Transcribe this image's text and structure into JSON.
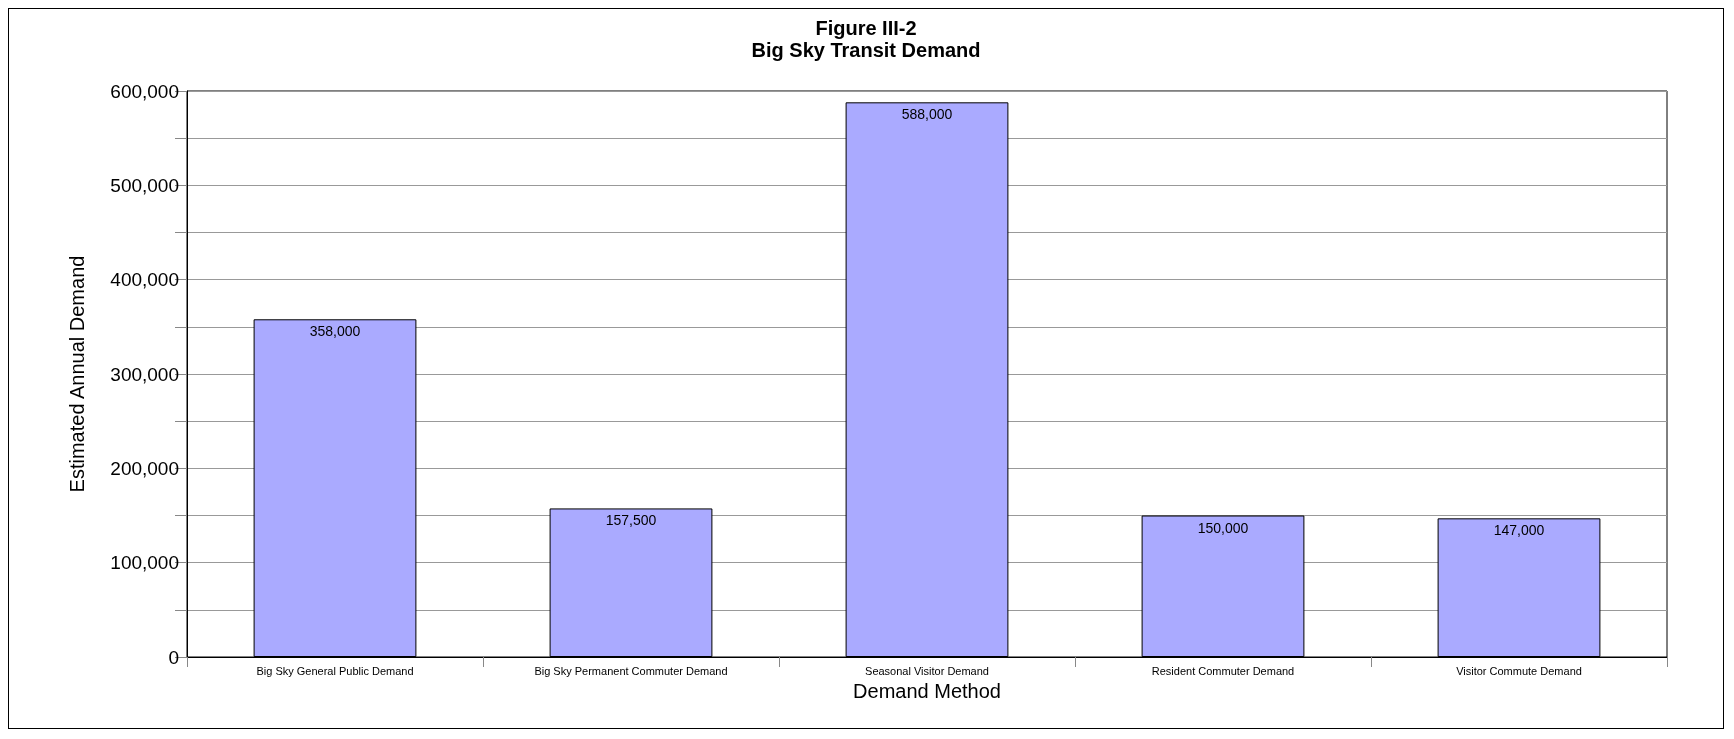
{
  "chart_data": {
    "type": "bar",
    "title": "Figure III-2",
    "subtitle": "Big Sky Transit Demand",
    "xlabel": "Demand Method",
    "ylabel": "Estimated Annual Demand",
    "categories": [
      "Big Sky General Public Demand",
      "Big Sky Permanent Commuter Demand",
      "Seasonal Visitor Demand",
      "Resident Commuter Demand",
      "Visitor Commute Demand"
    ],
    "values": [
      358000,
      157500,
      588000,
      150000,
      147000
    ],
    "value_labels": [
      "358,000",
      "157,500",
      "588,000",
      "150,000",
      "147,000"
    ],
    "color": "#aaaaff",
    "ylim": [
      0,
      600000
    ],
    "yticks": [
      {
        "value": 0,
        "label": "0"
      },
      {
        "value": 50000,
        "label": null
      },
      {
        "value": 100000,
        "label": "100,000"
      },
      {
        "value": 150000,
        "label": null
      },
      {
        "value": 200000,
        "label": "200,000"
      },
      {
        "value": 250000,
        "label": null
      },
      {
        "value": 300000,
        "label": "300,000"
      },
      {
        "value": 350000,
        "label": null
      },
      {
        "value": 400000,
        "label": "400,000"
      },
      {
        "value": 450000,
        "label": null
      },
      {
        "value": 500000,
        "label": "500,000"
      },
      {
        "value": 550000,
        "label": null
      },
      {
        "value": 600000,
        "label": "600,000"
      }
    ],
    "grid": "y"
  }
}
